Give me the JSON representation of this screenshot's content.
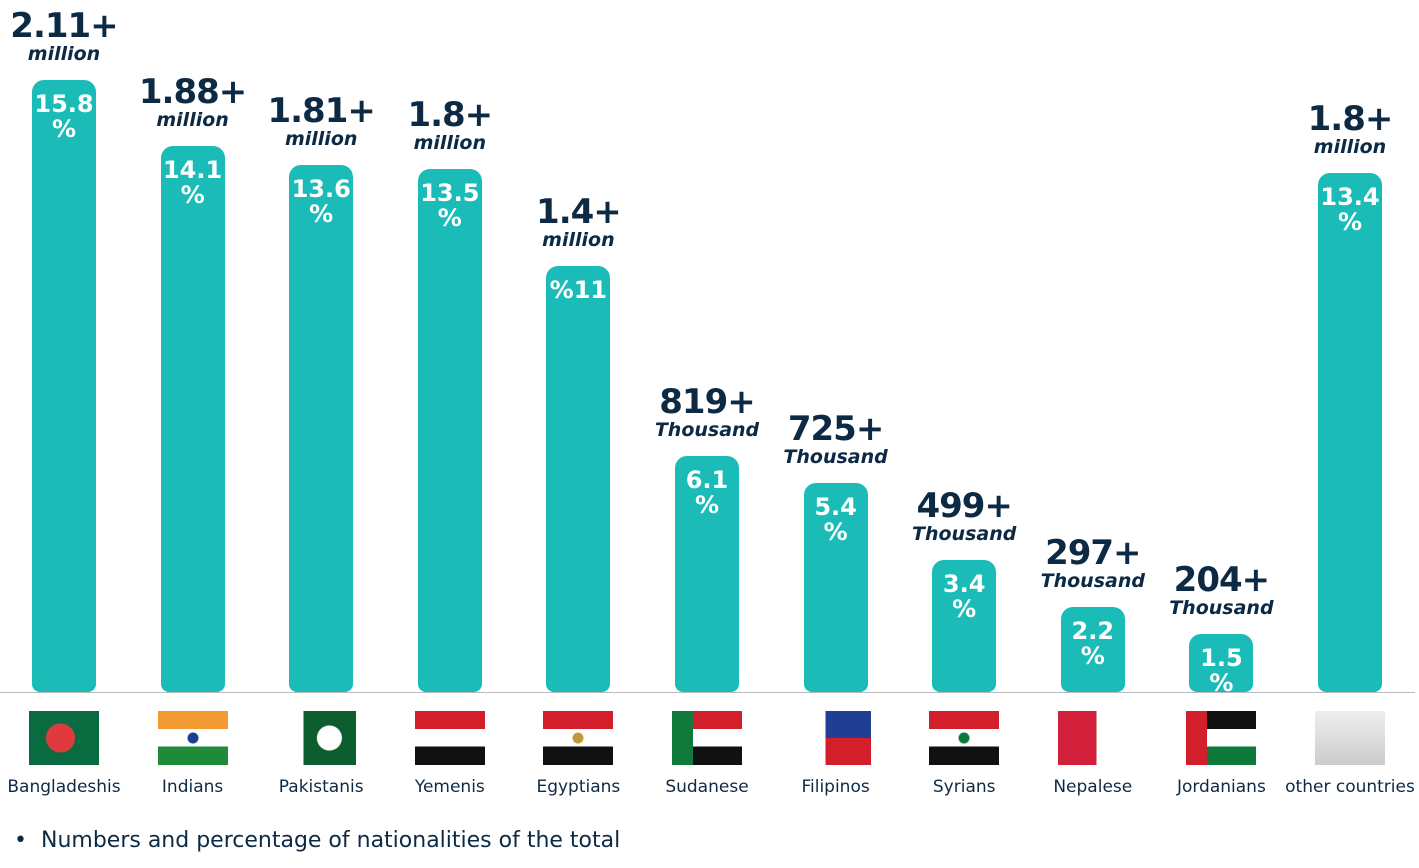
{
  "chart_data": {
    "type": "bar",
    "categories": [
      "Bangladeshis",
      "Indians",
      "Pakistanis",
      "Yemenis",
      "Egyptians",
      "Sudanese",
      "Filipinos",
      "Syrians",
      "Nepalese",
      "Jordanians",
      "other countries"
    ],
    "values": [
      15.8,
      14.1,
      13.6,
      13.5,
      11,
      6.1,
      5.4,
      3.4,
      2.2,
      1.5,
      13.4
    ],
    "value_labels": [
      "15.8\n%",
      "14.1\n%",
      "13.6\n%",
      "13.5\n%",
      "%11",
      "6.1\n%",
      "5.4\n%",
      "3.4\n%",
      "2.2\n%",
      "1.5\n%",
      "13.4\n%"
    ],
    "count_labels": [
      "2.11+",
      "1.88+",
      "1.81+",
      "1.8+",
      "1.4+",
      "819+",
      "725+",
      "499+",
      "297+",
      "204+",
      "1.8+"
    ],
    "count_units": [
      "million",
      "million",
      "million",
      "million",
      "million",
      "Thousand",
      "Thousand",
      "Thousand",
      "Thousand",
      "Thousand",
      "million"
    ],
    "color": "#1bbcb8",
    "ylim": [
      0,
      16
    ],
    "note": "Numbers and percentage of nationalities of the total"
  }
}
